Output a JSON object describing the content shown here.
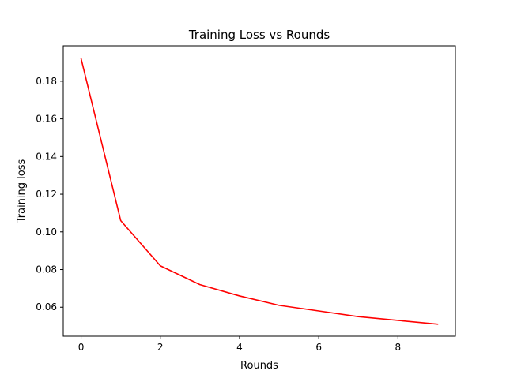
{
  "chart_data": {
    "type": "line",
    "title": "Training Loss vs Rounds",
    "xlabel": "Rounds",
    "ylabel": "Training loss",
    "xlim": [
      -0.45,
      9.45
    ],
    "ylim": [
      0.0446,
      0.1988
    ],
    "xticks": [
      0,
      2,
      4,
      6,
      8
    ],
    "xtick_labels": [
      "0",
      "2",
      "4",
      "6",
      "8"
    ],
    "yticks": [
      0.06,
      0.08,
      0.1,
      0.12,
      0.14,
      0.16,
      0.18
    ],
    "ytick_labels": [
      "0.06",
      "0.08",
      "0.10",
      "0.12",
      "0.14",
      "0.16",
      "0.18"
    ],
    "grid": false,
    "legend": null,
    "series": [
      {
        "color": "#ff0000",
        "x": [
          0,
          1,
          2,
          3,
          4,
          5,
          6,
          7,
          8,
          9
        ],
        "y": [
          0.192,
          0.106,
          0.082,
          0.072,
          0.066,
          0.061,
          0.058,
          0.055,
          0.053,
          0.051
        ]
      }
    ]
  }
}
